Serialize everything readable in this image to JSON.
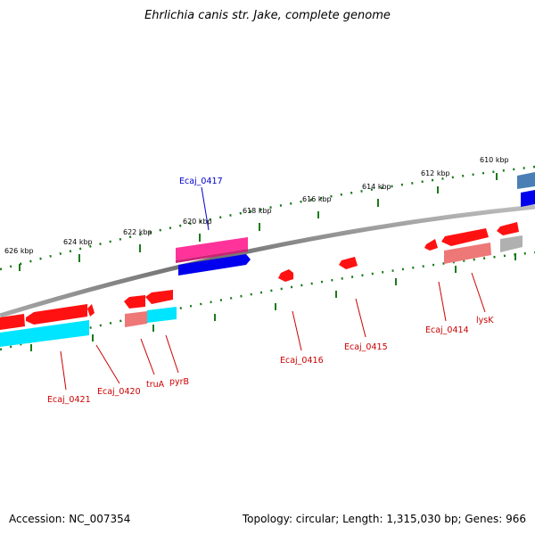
{
  "title": "Ehrlichia canis str. Jake, complete genome",
  "footer": {
    "accession": "Accession: NC_007354",
    "info": "Topology: circular; Length: 1,315,030 bp; Genes: 966"
  },
  "colors": {
    "forward_gene": "#ff0000",
    "forward_gene_light": "#ee7777",
    "reverse_gene": "#ff0000",
    "cyan_gene": "#00e5ff",
    "magenta_gene": "#ff3399",
    "blue_gene": "#0000ee",
    "steel_blue_gene": "#4a7fb5",
    "gray_gene": "#b0b0b0",
    "tick": "#1a7a1a",
    "backbone": "#808080",
    "label": "#cc0000",
    "label_highlight": "#0000cc"
  },
  "ticks_outer": [
    "626 kbp",
    "624 kbp",
    "622 kbp",
    "620 kbp",
    "618 kbp",
    "616 kbp",
    "614 kbp",
    "612 kbp",
    "610 kbp"
  ],
  "gene_labels": [
    {
      "text": "Ecaj_0417",
      "color": "label_highlight"
    },
    {
      "text": "Ecaj_0421"
    },
    {
      "text": "Ecaj_0420"
    },
    {
      "text": "truA"
    },
    {
      "text": "pyrB"
    },
    {
      "text": "Ecaj_0416"
    },
    {
      "text": "Ecaj_0415"
    },
    {
      "text": "Ecaj_0414"
    },
    {
      "text": "lysK"
    }
  ]
}
